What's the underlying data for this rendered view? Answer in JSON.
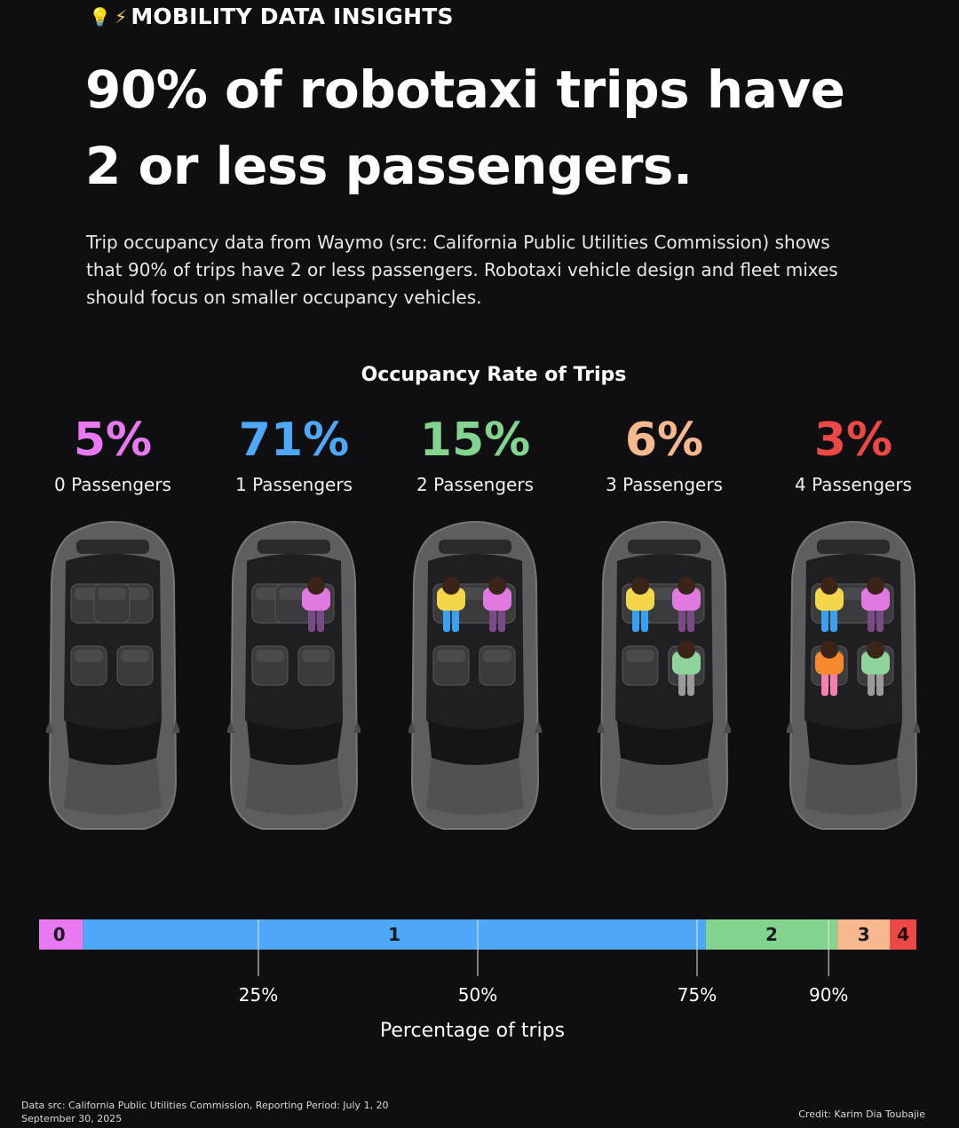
{
  "header": {
    "kicker": "MOBILITY DATA INSIGHTS",
    "kicker_icons": [
      "lightbulb-icon",
      "lightning-bolt-icon"
    ],
    "headline_line1": "90% of robotaxi trips have",
    "headline_line2": "2 or less passengers.",
    "intro": "Trip occupancy data from Waymo (src: California Public Utilities Commission) shows that 90% of trips have 2 or less passengers. Robotaxi vehicle design and fleet mixes should focus on smaller occupancy vehicles."
  },
  "chart_data": {
    "type": "bar",
    "orientation": "horizontal-stacked",
    "title": "Occupancy Rate of Trips",
    "xlabel": "Percentage of trips",
    "categories": [
      "0 Passengers",
      "1 Passengers",
      "2 Passengers",
      "3 Passengers",
      "4 Passengers"
    ],
    "values": [
      5,
      71,
      15,
      6,
      3
    ],
    "value_labels": [
      "5%",
      "71%",
      "15%",
      "6%",
      "3%"
    ],
    "segment_labels": [
      "0",
      "1",
      "2",
      "3",
      "4"
    ],
    "colors": [
      "#e879f0",
      "#4ea8f7",
      "#82d48e",
      "#f6b88c",
      "#ec4845"
    ],
    "ticks": [
      25,
      50,
      75,
      90
    ],
    "tick_labels": [
      "25%",
      "50%",
      "75%",
      "90%"
    ],
    "xlim": [
      0,
      100
    ],
    "passenger_seats": [
      [],
      [
        "rear-right"
      ],
      [
        "rear-left",
        "rear-right"
      ],
      [
        "rear-left",
        "rear-right",
        "front-right"
      ],
      [
        "rear-left",
        "rear-right",
        "front-left",
        "front-right"
      ]
    ]
  },
  "footer": {
    "source_line1": "Data src: California Public Utilities Commission, Reporting Period: July 1, 20",
    "source_line2": "September 30, 2025",
    "credit": "Credit: Karim Dia Toubajie"
  }
}
